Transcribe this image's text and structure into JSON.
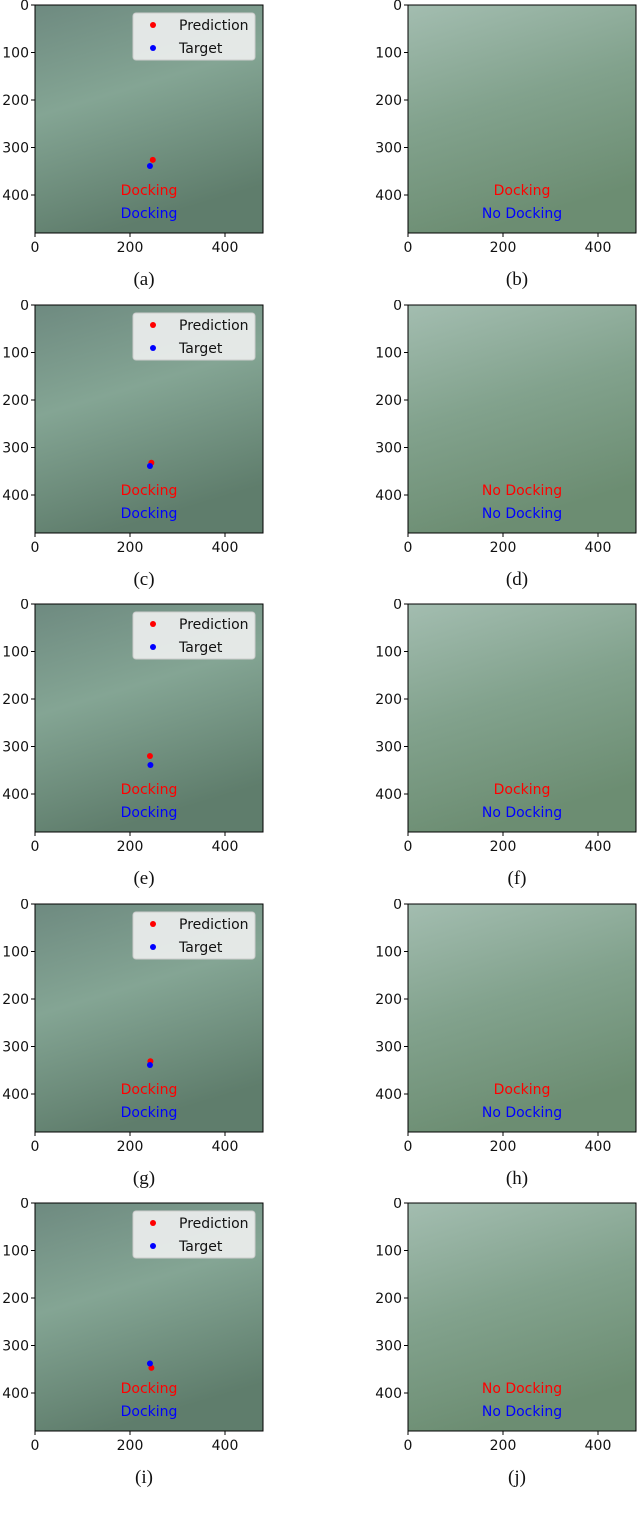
{
  "figure": {
    "axis": {
      "xlim": [
        0,
        480
      ],
      "ylim": [
        480,
        0
      ],
      "xticks": [
        0,
        200,
        400
      ],
      "yticks": [
        0,
        100,
        200,
        300,
        400
      ]
    },
    "legend": {
      "prediction": "Prediction",
      "target": "Target"
    },
    "colors": {
      "prediction": "#ff0000",
      "target": "#0000ff"
    },
    "panels": [
      {
        "label": "(a)",
        "legend": true,
        "prediction_point": [
          248,
          326
        ],
        "target_point": [
          242,
          339
        ],
        "prediction_text": "Docking",
        "target_text": "Docking"
      },
      {
        "label": "(b)",
        "legend": false,
        "prediction_text": "Docking",
        "target_text": "No Docking"
      },
      {
        "label": "(c)",
        "legend": true,
        "prediction_point": [
          245,
          332
        ],
        "target_point": [
          242,
          339
        ],
        "prediction_text": "Docking",
        "target_text": "Docking"
      },
      {
        "label": "(d)",
        "legend": false,
        "prediction_text": "No Docking",
        "target_text": "No Docking"
      },
      {
        "label": "(e)",
        "legend": true,
        "prediction_point": [
          242,
          320
        ],
        "target_point": [
          243,
          339
        ],
        "prediction_text": "Docking",
        "target_text": "Docking"
      },
      {
        "label": "(f)",
        "legend": false,
        "prediction_text": "Docking",
        "target_text": "No Docking"
      },
      {
        "label": "(g)",
        "legend": true,
        "prediction_point": [
          243,
          331
        ],
        "target_point": [
          242,
          339
        ],
        "prediction_text": "Docking",
        "target_text": "Docking"
      },
      {
        "label": "(h)",
        "legend": false,
        "prediction_text": "Docking",
        "target_text": "No Docking"
      },
      {
        "label": "(i)",
        "legend": true,
        "prediction_point": [
          245,
          347
        ],
        "target_point": [
          242,
          338
        ],
        "prediction_text": "Docking",
        "target_text": "Docking"
      },
      {
        "label": "(j)",
        "legend": false,
        "prediction_text": "No Docking",
        "target_text": "No Docking"
      }
    ]
  }
}
